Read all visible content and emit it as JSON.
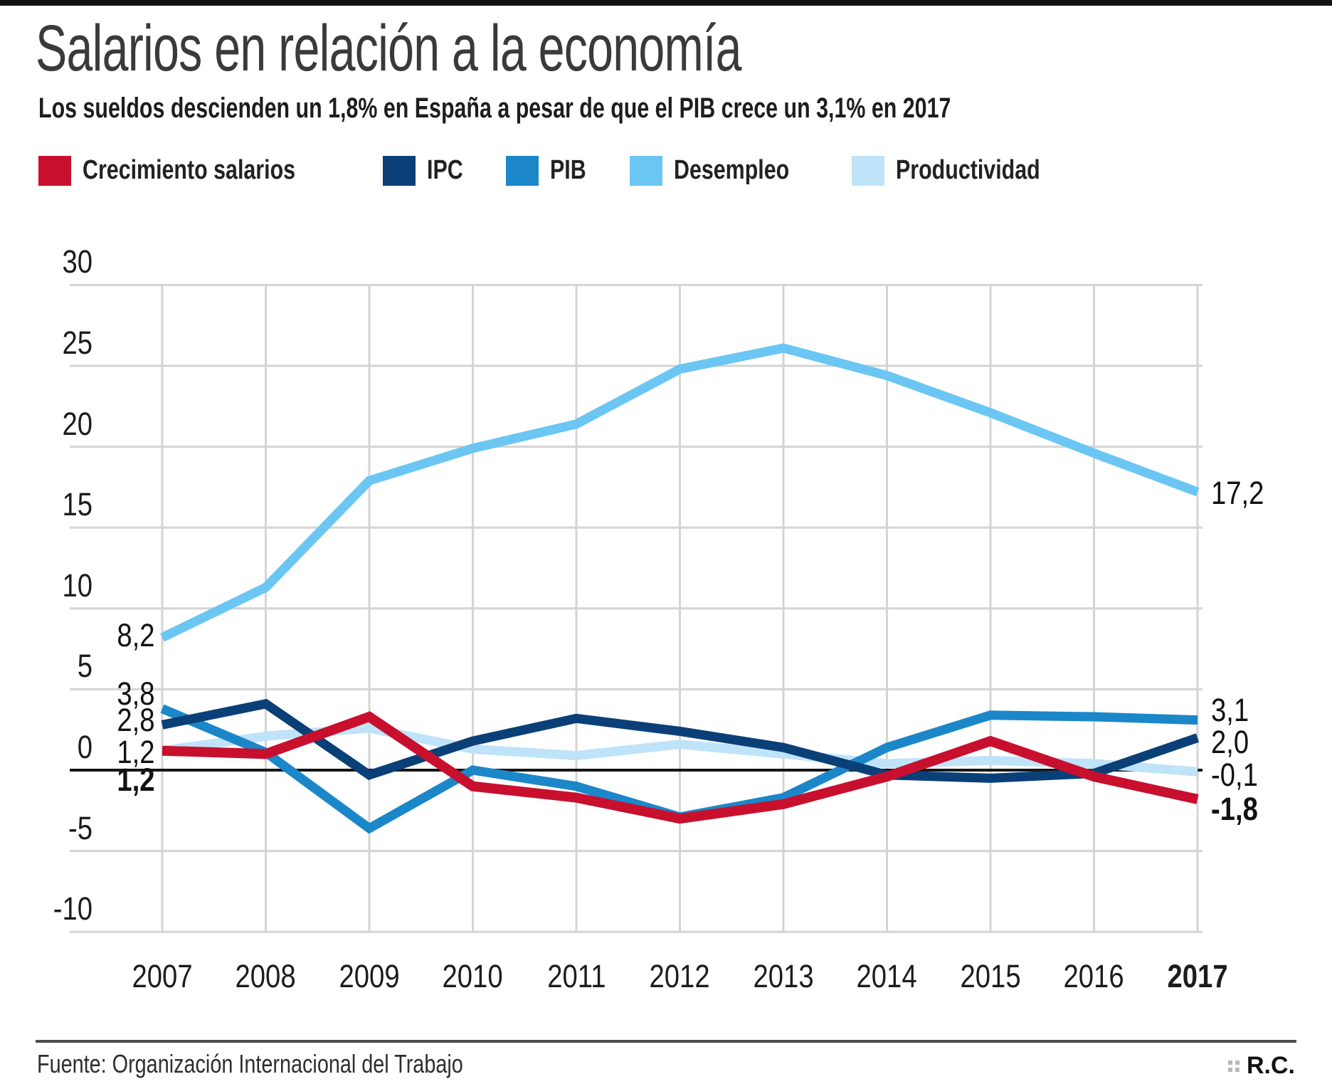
{
  "page": {
    "background": "#ffffff",
    "top_bar_color": "#121212"
  },
  "header": {
    "title": "Salarios en relación a la economía",
    "subtitle": "Los sueldos descienden un 1,8% en España a pesar de que el PIB crece un 3,1% en 2017"
  },
  "chart_data": {
    "type": "line",
    "x": [
      2007,
      2008,
      2009,
      2010,
      2011,
      2012,
      2013,
      2014,
      2015,
      2016,
      2017
    ],
    "x_labels": [
      {
        "text": "2007",
        "bold": false
      },
      {
        "text": "2008",
        "bold": false
      },
      {
        "text": "2009",
        "bold": false
      },
      {
        "text": "2010",
        "bold": false
      },
      {
        "text": "2011",
        "bold": false
      },
      {
        "text": "2012",
        "bold": false
      },
      {
        "text": "2013",
        "bold": false
      },
      {
        "text": "2014",
        "bold": false
      },
      {
        "text": "2015",
        "bold": false
      },
      {
        "text": "2016",
        "bold": false
      },
      {
        "text": "2017",
        "bold": true
      }
    ],
    "yticks": [
      30,
      25,
      20,
      15,
      10,
      5,
      0,
      -5,
      -10
    ],
    "ylim": [
      -10,
      30
    ],
    "grid": true,
    "legend_position": "top",
    "grid_color": "#d4d4d4",
    "zero_line_color": "#151515",
    "series": [
      {
        "name": "Crecimiento salarios",
        "color": "#c8102e",
        "width": 14,
        "values": [
          1.2,
          1.0,
          3.3,
          -1.0,
          -1.7,
          -3.0,
          -2.1,
          -0.4,
          1.8,
          -0.4,
          -1.8
        ]
      },
      {
        "name": "IPC",
        "color": "#0a4077",
        "width": 13,
        "values": [
          2.8,
          4.1,
          -0.3,
          1.8,
          3.2,
          2.4,
          1.4,
          -0.3,
          -0.5,
          -0.2,
          2.0
        ]
      },
      {
        "name": "PIB",
        "color": "#1b87c9",
        "width": 13,
        "values": [
          3.8,
          1.1,
          -3.6,
          0.0,
          -1.0,
          -2.9,
          -1.7,
          1.4,
          3.4,
          3.3,
          3.1
        ]
      },
      {
        "name": "Desempleo",
        "color": "#6bc6f3",
        "width": 13,
        "values": [
          8.2,
          11.3,
          17.9,
          19.9,
          21.4,
          24.8,
          26.1,
          24.4,
          22.1,
          19.6,
          17.2
        ]
      },
      {
        "name": "Productividad",
        "color": "#bfe3f9",
        "width": 13,
        "values": [
          1.2,
          2.1,
          2.6,
          1.3,
          0.9,
          1.6,
          1.0,
          0.4,
          0.6,
          0.4,
          -0.1
        ]
      }
    ],
    "left_labels": [
      {
        "text": "8,2",
        "v": 8.3,
        "bold": false
      },
      {
        "text": "3,8",
        "v": 4.7,
        "bold": false
      },
      {
        "text": "2,8",
        "v": 3.1,
        "bold": false
      },
      {
        "text": "1,2",
        "v": 1.1,
        "bold": false
      },
      {
        "text": "1,2",
        "v": -0.6,
        "bold": true
      }
    ],
    "right_labels": [
      {
        "text": "17,2",
        "v": 17.1,
        "bold": false
      },
      {
        "text": "3,1",
        "v": 3.7,
        "bold": false
      },
      {
        "text": "2,0",
        "v": 1.7,
        "bold": false
      },
      {
        "text": "-0,1",
        "v": -0.3,
        "bold": false
      },
      {
        "text": "-1,8",
        "v": -2.4,
        "bold": true
      }
    ]
  },
  "footer": {
    "source": "Fuente: Organización Internacional del Trabajo",
    "credit": "R.C."
  }
}
